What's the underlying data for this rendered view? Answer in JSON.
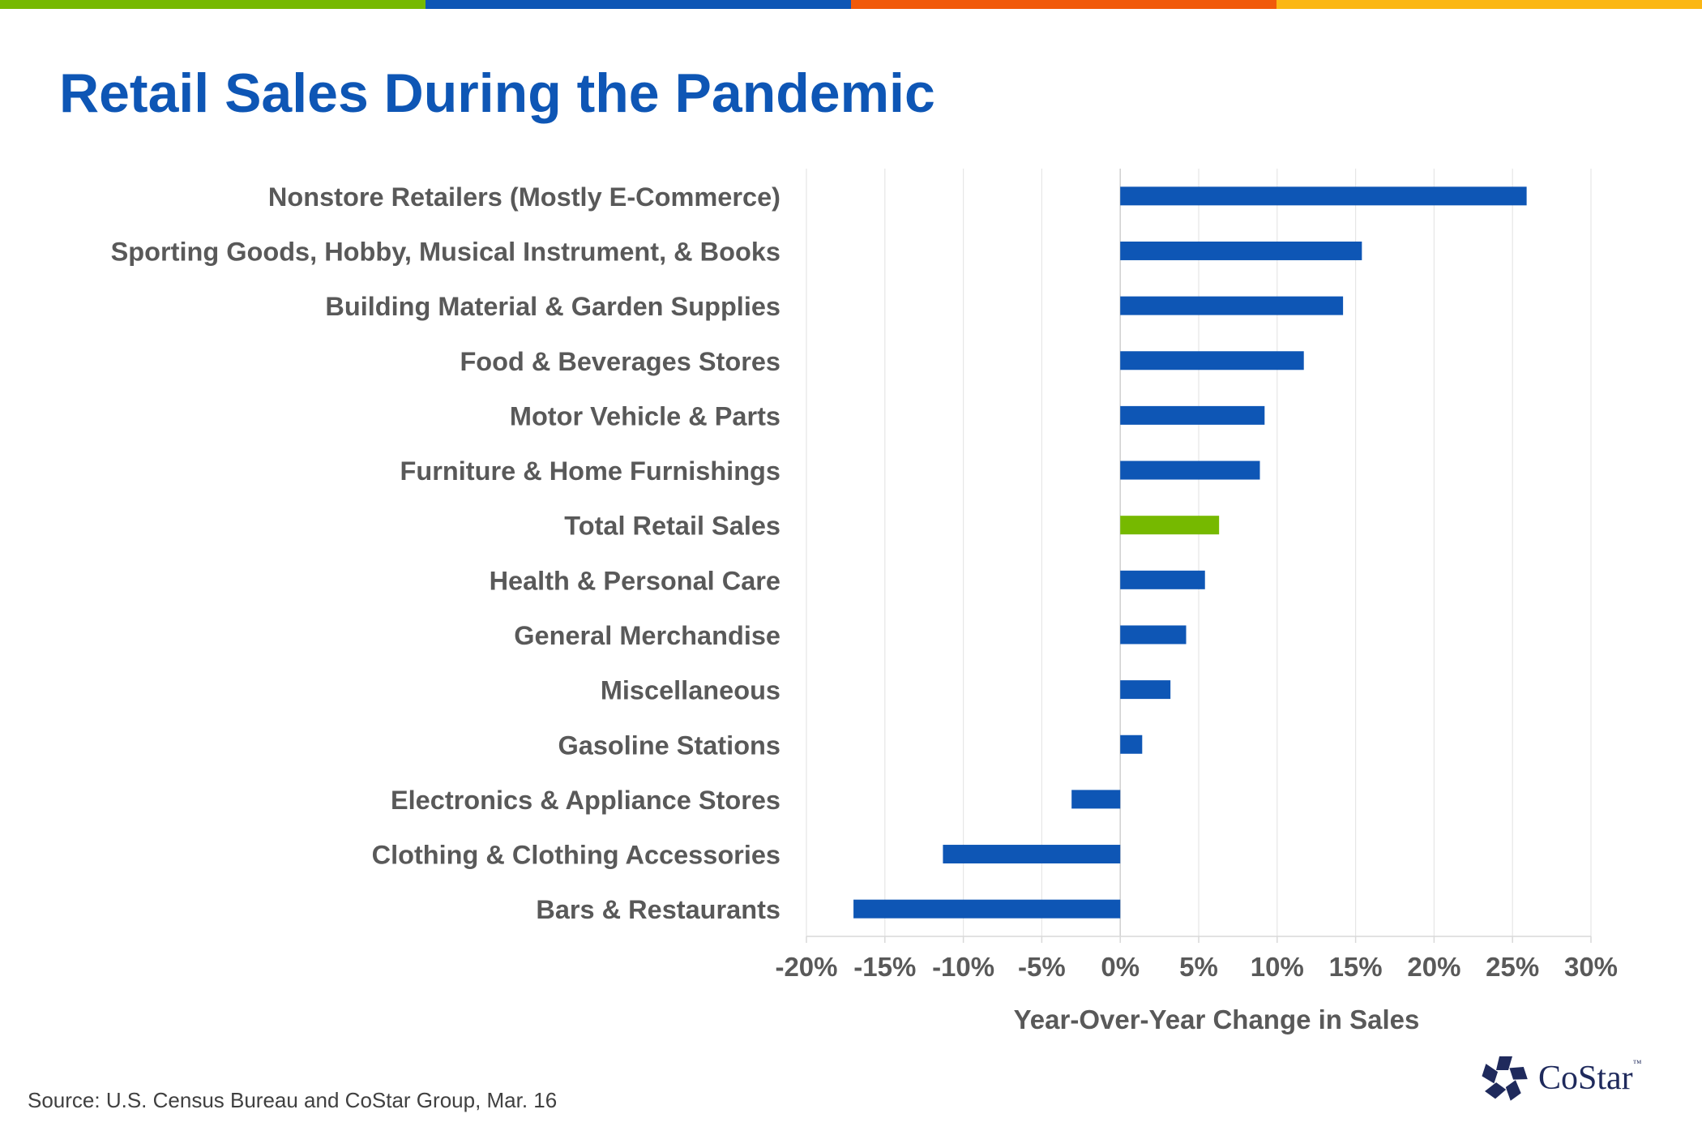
{
  "title": "Retail Sales During the Pandemic",
  "source": "Source: U.S. Census Bureau and CoStar Group, Mar. 16",
  "logo": {
    "text": "CoStar",
    "tm": "™",
    "icon": "costar-star-icon",
    "color": "#1f2a5c"
  },
  "colors": {
    "bar": "#0e56b5",
    "highlight": "#76b900",
    "title": "#0e56b5",
    "text": "#595959",
    "grid": "#e6e6e6",
    "topbar": [
      "#76b900",
      "#0e56b5",
      "#f15a0a",
      "#fbb714"
    ]
  },
  "chart_data": {
    "type": "bar",
    "orientation": "horizontal",
    "categories": [
      "Nonstore Retailers (Mostly E-Commerce)",
      "Sporting Goods, Hobby, Musical Instrument, & Books",
      "Building Material & Garden Supplies",
      "Food & Beverages Stores",
      "Motor Vehicle & Parts",
      "Furniture & Home Furnishings",
      "Total Retail Sales",
      "Health & Personal Care",
      "General Merchandise",
      "Miscellaneous",
      "Gasoline Stations",
      "Electronics & Appliance Stores",
      "Clothing & Clothing Accessories",
      "Bars & Restaurants"
    ],
    "values": [
      25.9,
      15.4,
      14.2,
      11.7,
      9.2,
      8.9,
      6.3,
      5.4,
      4.2,
      3.2,
      1.4,
      -3.1,
      -11.3,
      -17.0
    ],
    "highlight_category": "Total Retail Sales",
    "xlabel": "Year-Over-Year Change in Sales",
    "xlim": [
      -20,
      30
    ],
    "xticks": [
      -20,
      -15,
      -10,
      -5,
      0,
      5,
      10,
      15,
      20,
      25,
      30
    ],
    "tick_labels": [
      "-20%",
      "-15%",
      "-10%",
      "-5%",
      "0%",
      "5%",
      "10%",
      "15%",
      "20%",
      "25%",
      "30%"
    ],
    "grid": "vertical",
    "legend": "none"
  }
}
